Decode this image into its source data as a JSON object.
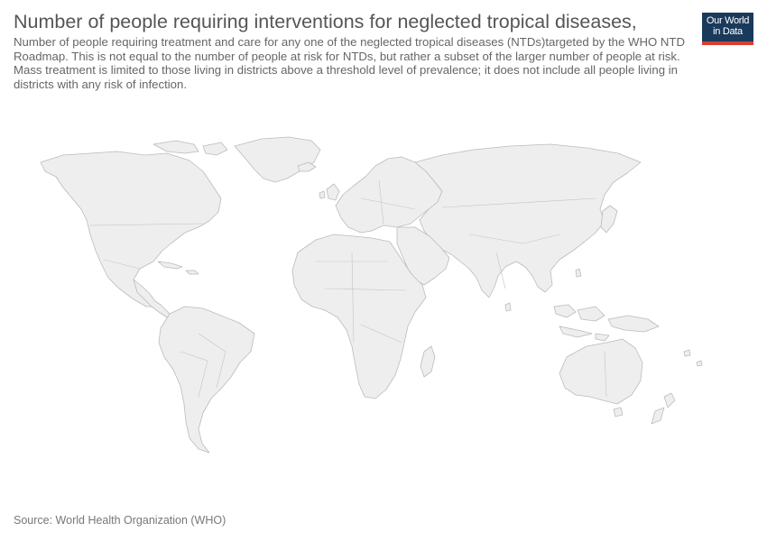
{
  "header": {
    "title": "Number of people requiring interventions for neglected tropical diseases,",
    "subtitle": "Number of people requiring treatment and care for any one of the neglected tropical diseases (NTDs)targeted by the WHO NTD Roadmap. This is not equal to the number of people at risk for NTDs, but rather a subset of the larger number of people at risk. Mass treatment is limited to those living in districts above a threshold level of prevalence; it does not include all people living in districts with any risk of infection."
  },
  "logo": {
    "line1": "Our World",
    "line2": "in Data"
  },
  "map": {
    "land_color": "#eeeeee",
    "border_color": "#bbbbbb"
  },
  "footer": {
    "source": "Source: World Health Organization (WHO)"
  },
  "colors": {
    "title": "#555555",
    "logo_bg": "#1a3a5c",
    "logo_accent": "#d73f2f"
  }
}
